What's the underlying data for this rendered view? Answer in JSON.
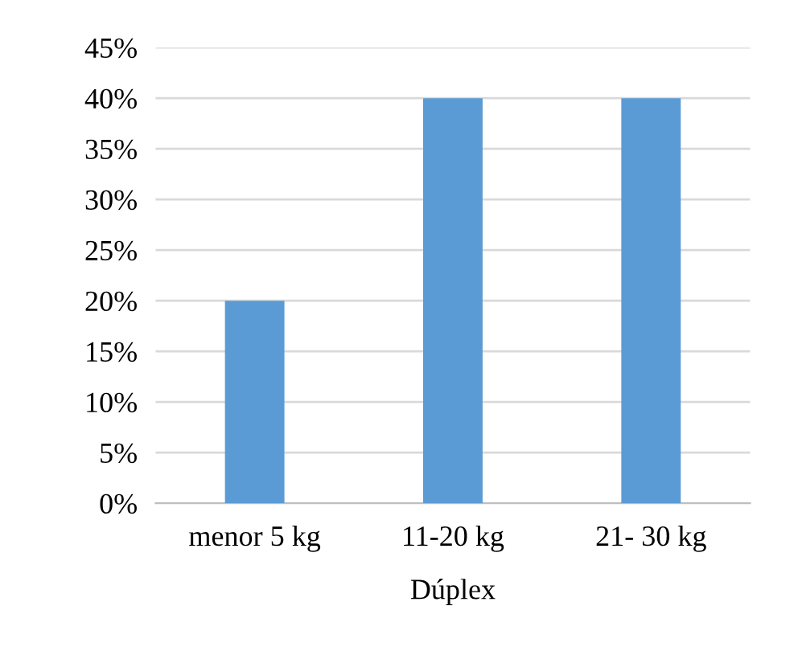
{
  "chart_data": {
    "type": "bar",
    "categories": [
      "menor 5 kg",
      "11-20 kg",
      "21- 30 kg"
    ],
    "values": [
      20,
      40,
      40
    ],
    "color": "#5b9bd5",
    "xlabel": "Dúplex",
    "ylim": [
      0,
      45
    ],
    "yticks": [
      {
        "value": 0,
        "label": "0%"
      },
      {
        "value": 5,
        "label": "5%"
      },
      {
        "value": 10,
        "label": "10%"
      },
      {
        "value": 15,
        "label": "15%"
      },
      {
        "value": 20,
        "label": "20%"
      },
      {
        "value": 25,
        "label": "25%"
      },
      {
        "value": 30,
        "label": "30%"
      },
      {
        "value": 35,
        "label": "35%"
      },
      {
        "value": 40,
        "label": "40%"
      },
      {
        "value": 45,
        "label": "45%"
      }
    ],
    "grid": "y"
  }
}
